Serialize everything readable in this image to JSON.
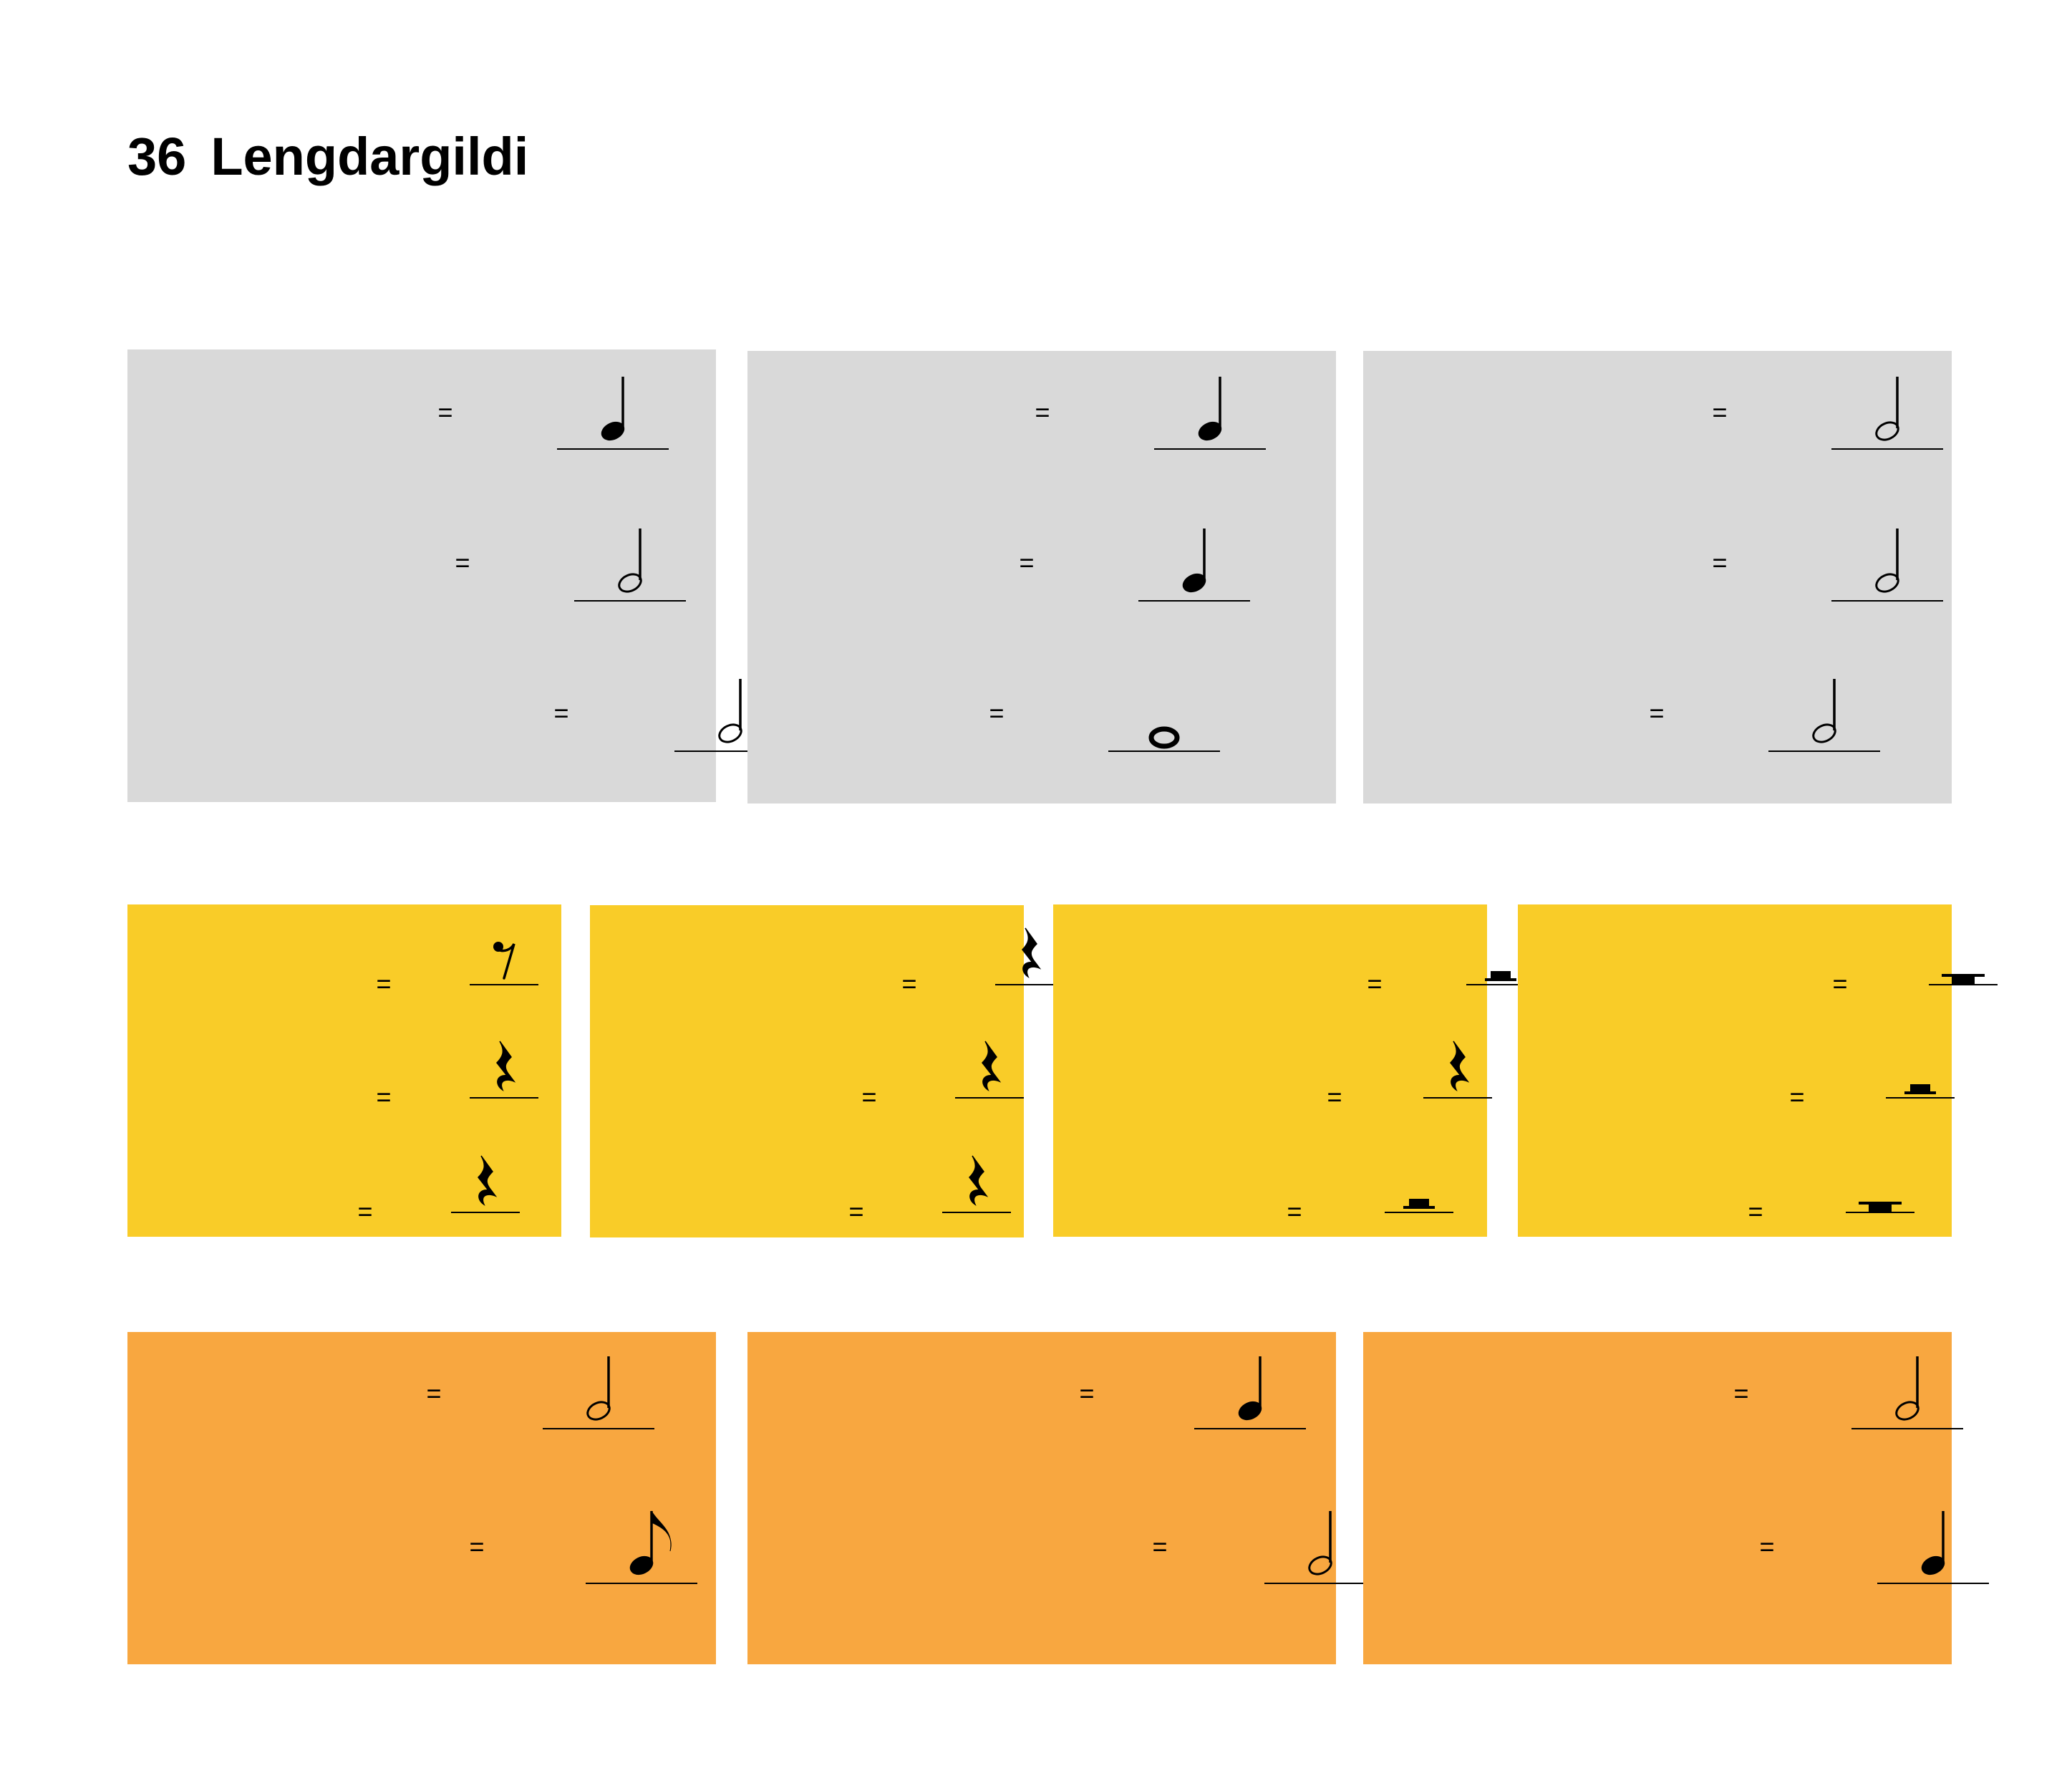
{
  "page": {
    "number": "36",
    "title": "Lengdargildi"
  },
  "colors": {
    "gray": "#d9d9d9",
    "yellow": "#f9cc28",
    "orange": "#f8a740",
    "ink": "#000000"
  },
  "equals_sign": "=",
  "exercise_rows": [
    {
      "color": "gray",
      "boxes": [
        {
          "answers": [
            "quarter-note",
            "half-note",
            "half-note"
          ]
        },
        {
          "answers": [
            "quarter-note",
            "quarter-note",
            "whole-note"
          ]
        },
        {
          "answers": [
            "half-note",
            "half-note",
            "half-note"
          ]
        }
      ]
    },
    {
      "color": "yellow",
      "boxes": [
        {
          "answers": [
            "eighth-rest",
            "quarter-rest",
            "quarter-rest"
          ]
        },
        {
          "answers": [
            "quarter-rest",
            "quarter-rest",
            "quarter-rest"
          ]
        },
        {
          "answers": [
            "half-rest",
            "quarter-rest",
            "half-rest"
          ]
        },
        {
          "answers": [
            "whole-rest",
            "half-rest",
            "whole-rest"
          ]
        }
      ]
    },
    {
      "color": "orange",
      "boxes": [
        {
          "answers": [
            "half-note",
            "eighth-note"
          ]
        },
        {
          "answers": [
            "quarter-note",
            "half-note"
          ]
        },
        {
          "answers": [
            "half-note",
            "quarter-note"
          ]
        }
      ]
    }
  ]
}
